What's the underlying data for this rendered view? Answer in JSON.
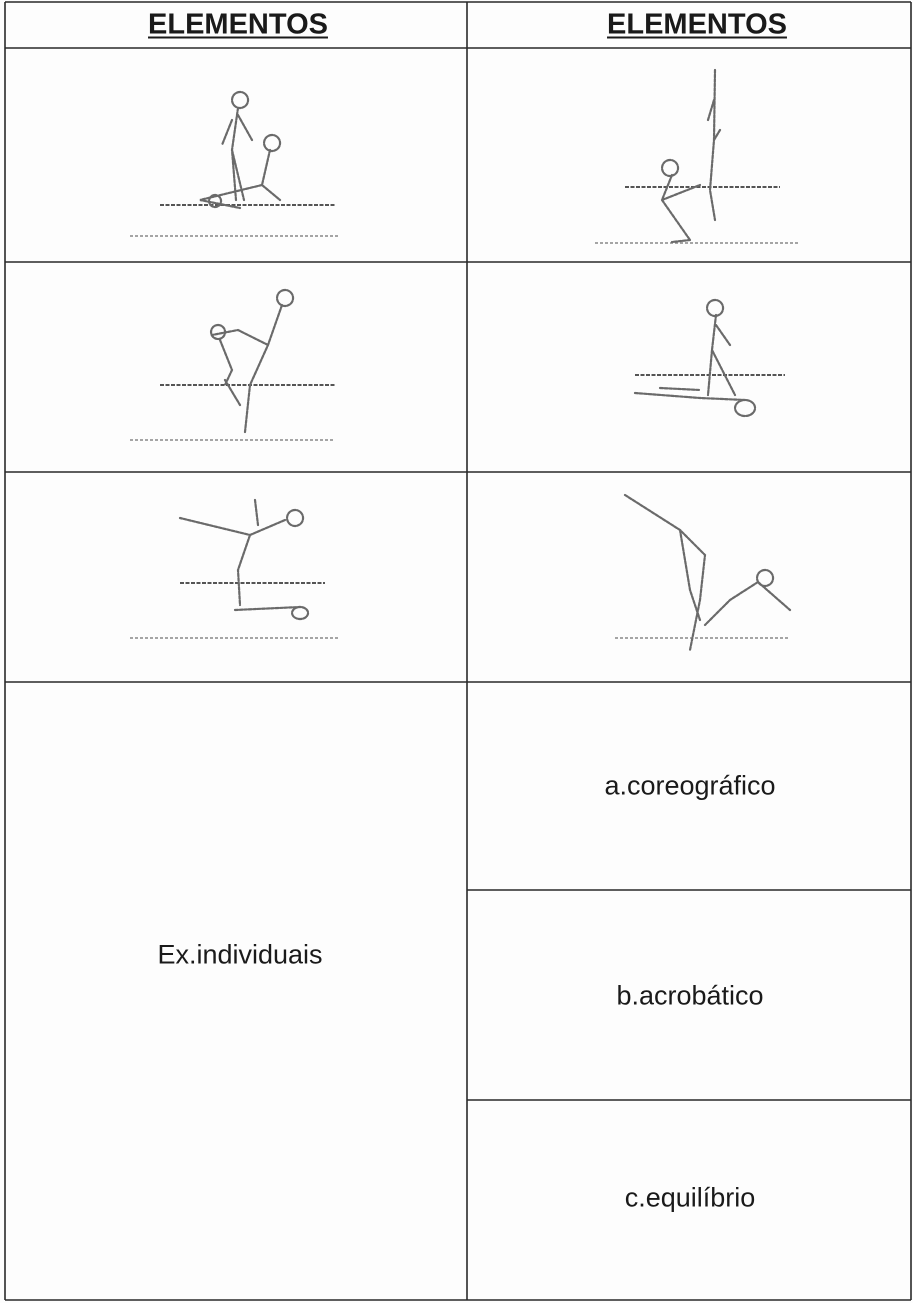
{
  "table": {
    "headers": [
      "ELEMENTOS",
      "ELEMENTOS"
    ],
    "group_label": "Ex.individuais",
    "items": [
      "a.coreográfico",
      "b.acrobático",
      "c.equilíbrio"
    ]
  }
}
